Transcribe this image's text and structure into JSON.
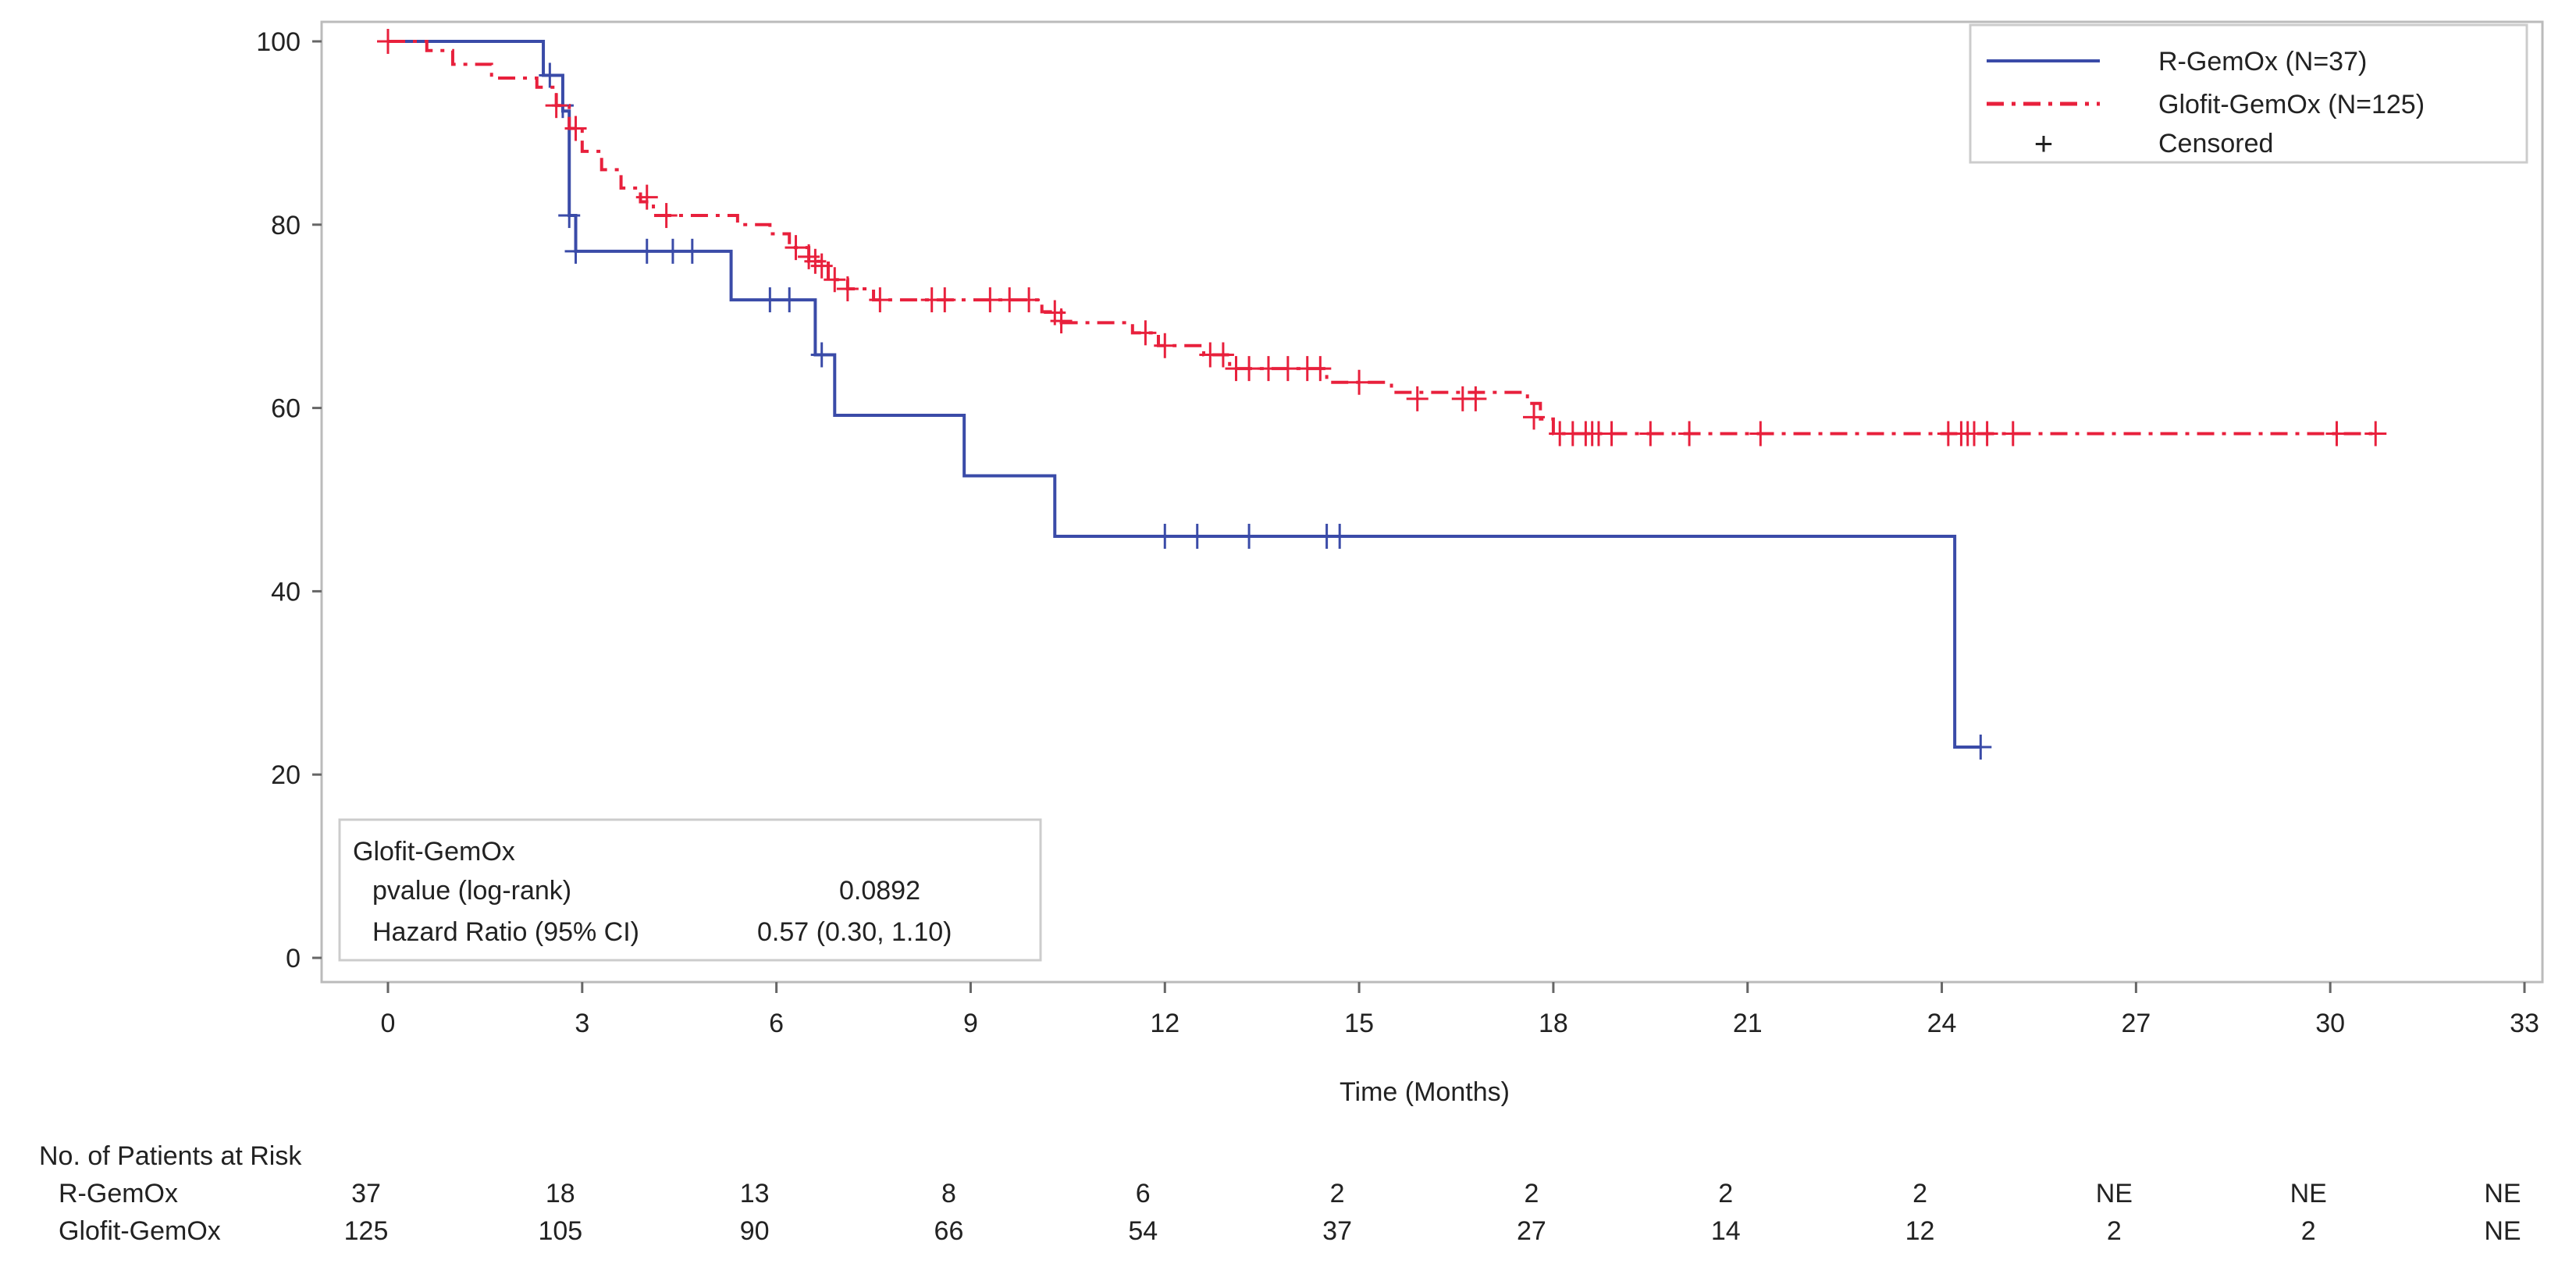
{
  "chart_data": {
    "type": "line",
    "subtype": "kaplan-meier step",
    "xlabel": "Time (Months)",
    "ylabel": "",
    "xlim": [
      0,
      33
    ],
    "ylim": [
      0,
      100
    ],
    "xticks": [
      "0",
      "3",
      "6",
      "9",
      "12",
      "15",
      "18",
      "21",
      "24",
      "27",
      "30",
      "33"
    ],
    "yticks": [
      "0",
      "20",
      "40",
      "60",
      "80",
      "100"
    ],
    "grid": false,
    "legend_placement": "top-right",
    "legend": {
      "censored_symbol": "+",
      "censored_label": "Censored"
    },
    "series": [
      {
        "name": "R-GemOx (N=37)",
        "color": "#3a4ba8",
        "line_style": "solid",
        "steps": [
          [
            0,
            100
          ],
          [
            2.4,
            96.3
          ],
          [
            2.7,
            92.4
          ],
          [
            2.8,
            81
          ],
          [
            2.9,
            77.1
          ],
          [
            5.3,
            71.8
          ],
          [
            6.6,
            65.8
          ],
          [
            6.9,
            59.2
          ],
          [
            8.9,
            52.6
          ],
          [
            10.3,
            46.0
          ],
          [
            24.2,
            23.0
          ]
        ],
        "end_time": 24.6,
        "censored": [
          [
            2.5,
            96.3
          ],
          [
            2.7,
            93
          ],
          [
            2.8,
            81
          ],
          [
            2.9,
            77.1
          ],
          [
            4.0,
            77.1
          ],
          [
            4.4,
            77.1
          ],
          [
            4.7,
            77.1
          ],
          [
            5.9,
            71.8
          ],
          [
            6.2,
            71.8
          ],
          [
            6.7,
            65.8
          ],
          [
            12.0,
            46.0
          ],
          [
            12.5,
            46.0
          ],
          [
            13.3,
            46.0
          ],
          [
            14.5,
            46.0
          ],
          [
            14.7,
            46.0
          ],
          [
            24.6,
            23.0
          ]
        ]
      },
      {
        "name": "Glofit-GemOx (N=125)",
        "color": "#e8203c",
        "line_style": "dash-dot",
        "steps": [
          [
            0,
            100
          ],
          [
            0.6,
            99
          ],
          [
            1.0,
            97.5
          ],
          [
            1.6,
            96
          ],
          [
            2.3,
            95
          ],
          [
            2.6,
            93
          ],
          [
            2.8,
            90.5
          ],
          [
            3.0,
            88
          ],
          [
            3.3,
            86
          ],
          [
            3.6,
            84
          ],
          [
            3.9,
            82.5
          ],
          [
            4.1,
            81
          ],
          [
            5.4,
            80
          ],
          [
            5.9,
            79
          ],
          [
            6.2,
            77.5
          ],
          [
            6.5,
            76
          ],
          [
            6.8,
            74
          ],
          [
            7.1,
            73
          ],
          [
            7.5,
            71.8
          ],
          [
            10.1,
            70.5
          ],
          [
            10.4,
            69.3
          ],
          [
            11.5,
            68.2
          ],
          [
            11.9,
            66.8
          ],
          [
            12.6,
            65.8
          ],
          [
            13.0,
            64.3
          ],
          [
            14.5,
            62.8
          ],
          [
            15.5,
            61.7
          ],
          [
            17.6,
            60.5
          ],
          [
            17.8,
            58.8
          ],
          [
            18.0,
            57.2
          ]
        ],
        "end_time": 30.7,
        "censored": [
          [
            0,
            100
          ],
          [
            2.6,
            93
          ],
          [
            2.9,
            90.5
          ],
          [
            4.0,
            83
          ],
          [
            4.3,
            81
          ],
          [
            6.3,
            77.5
          ],
          [
            6.5,
            76.5
          ],
          [
            6.6,
            76
          ],
          [
            6.7,
            75.5
          ],
          [
            6.9,
            74
          ],
          [
            7.1,
            73
          ],
          [
            7.6,
            71.8
          ],
          [
            8.4,
            71.8
          ],
          [
            8.6,
            71.8
          ],
          [
            9.3,
            71.8
          ],
          [
            9.6,
            71.8
          ],
          [
            9.9,
            71.8
          ],
          [
            10.3,
            70.4
          ],
          [
            10.4,
            69.5
          ],
          [
            11.7,
            68.2
          ],
          [
            12.0,
            66.8
          ],
          [
            12.7,
            65.8
          ],
          [
            12.9,
            65.8
          ],
          [
            13.1,
            64.3
          ],
          [
            13.3,
            64.3
          ],
          [
            13.6,
            64.3
          ],
          [
            13.9,
            64.3
          ],
          [
            14.2,
            64.3
          ],
          [
            14.4,
            64.3
          ],
          [
            15.0,
            62.8
          ],
          [
            15.9,
            61
          ],
          [
            16.6,
            61
          ],
          [
            16.8,
            61
          ],
          [
            17.7,
            59
          ],
          [
            18.1,
            57.2
          ],
          [
            18.3,
            57.2
          ],
          [
            18.5,
            57.2
          ],
          [
            18.6,
            57.2
          ],
          [
            18.7,
            57.2
          ],
          [
            18.9,
            57.2
          ],
          [
            19.5,
            57.2
          ],
          [
            20.1,
            57.2
          ],
          [
            21.2,
            57.2
          ],
          [
            24.1,
            57.2
          ],
          [
            24.3,
            57.2
          ],
          [
            24.4,
            57.2
          ],
          [
            24.5,
            57.2
          ],
          [
            24.7,
            57.2
          ],
          [
            25.1,
            57.2
          ],
          [
            30.1,
            57.2
          ],
          [
            30.7,
            57.2
          ]
        ]
      }
    ],
    "stats_box": {
      "title": "Glofit-GemOx",
      "rows": [
        {
          "label": "pvalue (log-rank)",
          "value": "0.0892"
        },
        {
          "label": "Hazard Ratio (95% CI)",
          "value": "0.57 (0.30, 1.10)"
        }
      ]
    },
    "risk_table": {
      "title": "No. of Patients at Risk",
      "rows": [
        {
          "label": "R-GemOx",
          "values": [
            "37",
            "18",
            "13",
            "8",
            "6",
            "2",
            "2",
            "2",
            "2",
            "NE",
            "NE",
            "NE"
          ]
        },
        {
          "label": "Glofit-GemOx",
          "values": [
            "125",
            "105",
            "90",
            "66",
            "54",
            "37",
            "27",
            "14",
            "12",
            "2",
            "2",
            "NE"
          ]
        }
      ]
    }
  }
}
